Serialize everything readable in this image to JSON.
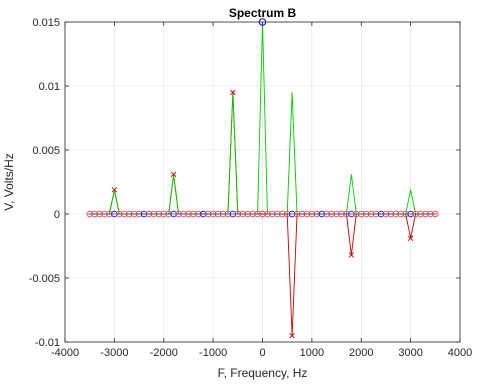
{
  "chart_data": {
    "type": "line",
    "title": "Spectrum B",
    "xlabel": "F, Frequency, Hz",
    "ylabel": "V, Volts/Hz",
    "xlim": [
      -4000,
      4000
    ],
    "ylim": [
      -0.01,
      0.015
    ],
    "grid": true,
    "xticks": [
      -4000,
      -3000,
      -2000,
      -1000,
      0,
      1000,
      2000,
      3000,
      4000
    ],
    "xtick_labels": [
      "-4000",
      "-3000",
      "-2000",
      "-1000",
      "0",
      "1000",
      "2000",
      "3000",
      "4000"
    ],
    "yticks": [
      -0.01,
      -0.005,
      0,
      0.005,
      0.01,
      0.015
    ],
    "ytick_labels": [
      "-0.01",
      "-0.005",
      "0",
      "0.005",
      "0.01",
      "0.015"
    ],
    "x_spacing": 100,
    "x_range": [
      -3500,
      3500
    ],
    "series": [
      {
        "color": "#00cc00",
        "marker": "none",
        "points": [
          [
            -3000,
            0.0019
          ],
          [
            -1800,
            0.0031
          ],
          [
            -600,
            0.0095
          ],
          [
            0,
            0.015
          ],
          [
            600,
            0.0095
          ],
          [
            1800,
            0.0031
          ],
          [
            3000,
            0.0019
          ]
        ]
      },
      {
        "color": "#cc0000",
        "marker": "x",
        "points": [
          [
            -3000,
            0.0019
          ],
          [
            -1800,
            0.0031
          ],
          [
            -600,
            0.0095
          ],
          [
            600,
            -0.0095
          ],
          [
            1800,
            -0.0032
          ],
          [
            3000,
            -0.0019
          ]
        ]
      },
      {
        "color": "#0000ff",
        "marker": "o",
        "points": [
          [
            0,
            0.015
          ]
        ]
      }
    ]
  },
  "colors": {
    "imag_circle": "#ff3333",
    "baseline_marker": "#0000ff",
    "axis": "#262626",
    "grid": "#dfdfdf"
  }
}
